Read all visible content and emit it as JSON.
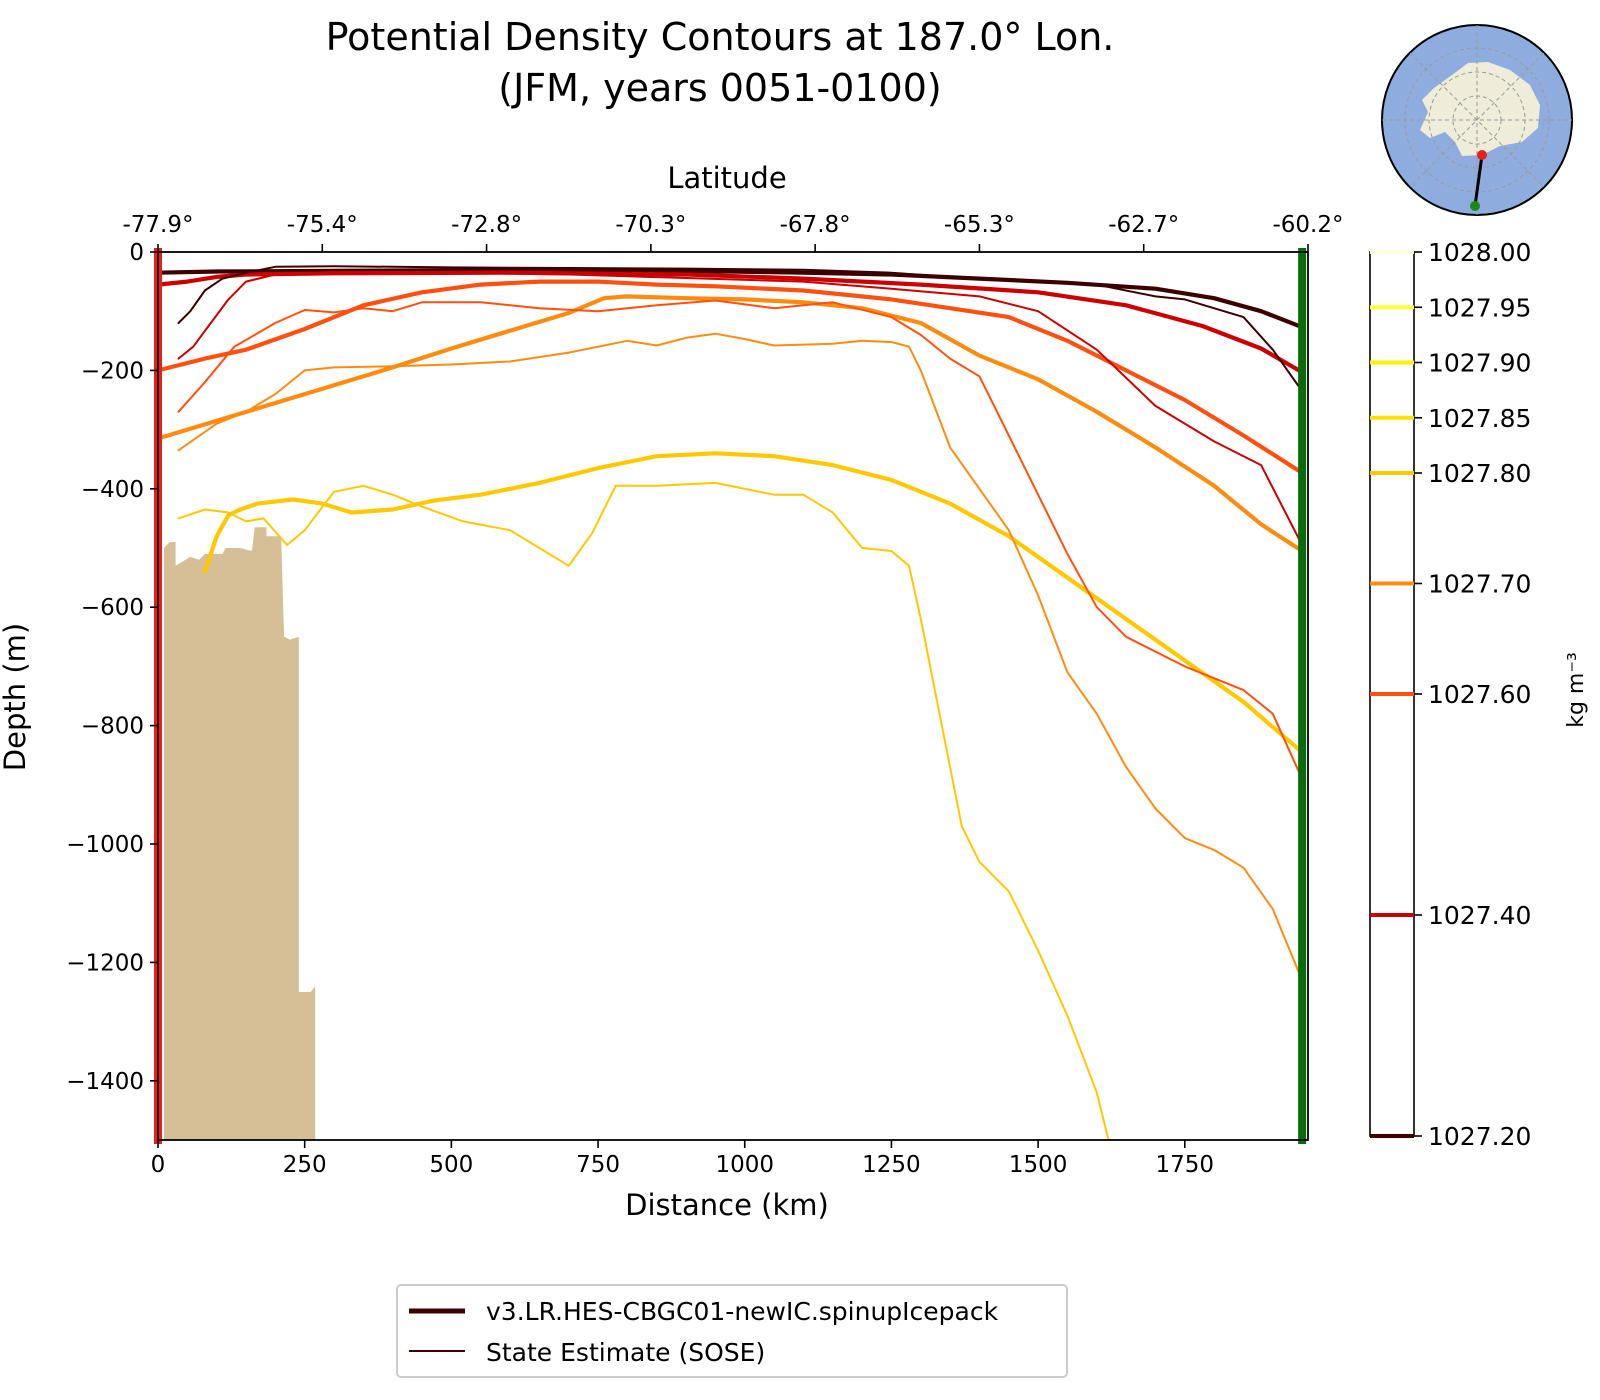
{
  "chart_data": {
    "type": "line",
    "title": "Potential Density Contours at 187.0° Lon.",
    "subtitle": "(JFM, years 0051-0100)",
    "xlabel": "Distance (km)",
    "x2label": "Latitude",
    "ylabel": "Depth (m)",
    "xlim": [
      0,
      1960
    ],
    "ylim": [
      -1500,
      0
    ],
    "x_ticks": [
      0,
      250,
      500,
      750,
      1000,
      1250,
      1500,
      1750
    ],
    "y_ticks": [
      0,
      -200,
      -400,
      -600,
      -800,
      -1000,
      -1200,
      -1400
    ],
    "x_tick_labels": [
      "0",
      "250",
      "500",
      "750",
      "1000",
      "1250",
      "1500",
      "1750"
    ],
    "y_tick_labels": [
      "0",
      "−200",
      "−400",
      "−600",
      "−800",
      "−1000",
      "−1200",
      "−1400"
    ],
    "top_axis": {
      "positions": [
        0,
        280,
        560,
        840,
        1120,
        1400,
        1680,
        1960
      ],
      "labels": [
        "-77.9°",
        "-75.4°",
        "-72.8°",
        "-70.3°",
        "-67.8°",
        "-65.3°",
        "-62.7°",
        "-60.2°"
      ]
    },
    "colorbar": {
      "label": "kg m⁻³",
      "range": [
        1027.2,
        1028.0
      ],
      "levels": [
        {
          "value": 1028.0,
          "label": "1028.00",
          "color": "#fffde0"
        },
        {
          "value": 1027.95,
          "label": "1027.95",
          "color": "#ffff33"
        },
        {
          "value": 1027.9,
          "label": "1027.90",
          "color": "#fff000"
        },
        {
          "value": 1027.85,
          "label": "1027.85",
          "color": "#ffe000"
        },
        {
          "value": 1027.8,
          "label": "1027.80",
          "color": "#ffc800"
        },
        {
          "value": 1027.7,
          "label": "1027.70",
          "color": "#ff8c10"
        },
        {
          "value": 1027.6,
          "label": "1027.60",
          "color": "#ff5010"
        },
        {
          "value": 1027.4,
          "label": "1027.40",
          "color": "#cc0000"
        },
        {
          "value": 1027.2,
          "label": "1027.20",
          "color": "#3d0000"
        }
      ]
    },
    "legend": {
      "placement": "bottom-center",
      "entries": [
        {
          "label": "v3.LR.HES-CBGC01-newIC.spinupIcepack",
          "style": "thick"
        },
        {
          "label": "State Estimate (SOSE)",
          "style": "thin"
        }
      ]
    },
    "bathymetry": {
      "color": "#d6bf96",
      "points": [
        [
          10,
          -500
        ],
        [
          20,
          -490
        ],
        [
          30,
          -490
        ],
        [
          30,
          -530
        ],
        [
          55,
          -515
        ],
        [
          70,
          -520
        ],
        [
          80,
          -510
        ],
        [
          110,
          -510
        ],
        [
          115,
          -500
        ],
        [
          140,
          -500
        ],
        [
          160,
          -505
        ],
        [
          165,
          -465
        ],
        [
          185,
          -465
        ],
        [
          185,
          -480
        ],
        [
          205,
          -480
        ],
        [
          210,
          -485
        ],
        [
          215,
          -650
        ],
        [
          225,
          -655
        ],
        [
          240,
          -650
        ],
        [
          240,
          -1250
        ],
        [
          260,
          -1250
        ],
        [
          268,
          -1240
        ],
        [
          268,
          -1500
        ],
        [
          10,
          -1500
        ]
      ]
    },
    "section_markers": [
      {
        "x": 0,
        "color": "#e8201a"
      },
      {
        "x": 1950,
        "color": "#0a6b0a"
      }
    ],
    "series": [
      {
        "name": "",
        "model": "v3.LR.HES-CBGC01-newIC.spinupIcepack",
        "level": 1027.2,
        "width": "thick",
        "points": [
          [
            0,
            -35
          ],
          [
            100,
            -33
          ],
          [
            300,
            -32
          ],
          [
            600,
            -30
          ],
          [
            900,
            -32
          ],
          [
            1100,
            -35
          ],
          [
            1250,
            -38
          ],
          [
            1400,
            -45
          ],
          [
            1550,
            -52
          ],
          [
            1700,
            -62
          ],
          [
            1800,
            -78
          ],
          [
            1880,
            -100
          ],
          [
            1950,
            -127
          ]
        ]
      },
      {
        "name": "",
        "model": "v3.LR.HES-CBGC01-newIC.spinupIcepack",
        "level": 1027.4,
        "width": "thick",
        "points": [
          [
            0,
            -55
          ],
          [
            50,
            -50
          ],
          [
            100,
            -42
          ],
          [
            150,
            -38
          ],
          [
            300,
            -36
          ],
          [
            600,
            -35
          ],
          [
            900,
            -38
          ],
          [
            1100,
            -45
          ],
          [
            1300,
            -55
          ],
          [
            1500,
            -68
          ],
          [
            1650,
            -90
          ],
          [
            1780,
            -125
          ],
          [
            1880,
            -163
          ],
          [
            1950,
            -203
          ]
        ]
      },
      {
        "name": "",
        "model": "v3.LR.HES-CBGC01-newIC.spinupIcepack",
        "level": 1027.6,
        "width": "thick",
        "points": [
          [
            0,
            -200
          ],
          [
            80,
            -180
          ],
          [
            150,
            -165
          ],
          [
            250,
            -130
          ],
          [
            350,
            -90
          ],
          [
            450,
            -68
          ],
          [
            550,
            -55
          ],
          [
            650,
            -50
          ],
          [
            750,
            -50
          ],
          [
            850,
            -55
          ],
          [
            950,
            -58
          ],
          [
            1100,
            -65
          ],
          [
            1250,
            -80
          ],
          [
            1350,
            -95
          ],
          [
            1450,
            -110
          ],
          [
            1550,
            -150
          ],
          [
            1650,
            -200
          ],
          [
            1750,
            -250
          ],
          [
            1850,
            -310
          ],
          [
            1950,
            -373
          ]
        ]
      },
      {
        "name": "",
        "model": "v3.LR.HES-CBGC01-newIC.spinupIcepack",
        "level": 1027.7,
        "width": "thick",
        "points": [
          [
            0,
            -315
          ],
          [
            100,
            -285
          ],
          [
            200,
            -255
          ],
          [
            300,
            -225
          ],
          [
            400,
            -195
          ],
          [
            500,
            -163
          ],
          [
            600,
            -133
          ],
          [
            700,
            -103
          ],
          [
            760,
            -78
          ],
          [
            800,
            -75
          ],
          [
            900,
            -78
          ],
          [
            1000,
            -80
          ],
          [
            1100,
            -85
          ],
          [
            1200,
            -95
          ],
          [
            1300,
            -120
          ],
          [
            1400,
            -175
          ],
          [
            1500,
            -215
          ],
          [
            1600,
            -270
          ],
          [
            1700,
            -330
          ],
          [
            1800,
            -395
          ],
          [
            1880,
            -460
          ],
          [
            1950,
            -505
          ]
        ]
      },
      {
        "name": "",
        "model": "v3.LR.HES-CBGC01-newIC.spinupIcepack",
        "level": 1027.8,
        "width": "thick",
        "points": [
          [
            80,
            -540
          ],
          [
            90,
            -510
          ],
          [
            100,
            -480
          ],
          [
            120,
            -445
          ],
          [
            140,
            -435
          ],
          [
            170,
            -425
          ],
          [
            230,
            -418
          ],
          [
            280,
            -425
          ],
          [
            330,
            -440
          ],
          [
            400,
            -435
          ],
          [
            470,
            -420
          ],
          [
            550,
            -410
          ],
          [
            650,
            -390
          ],
          [
            750,
            -365
          ],
          [
            850,
            -345
          ],
          [
            950,
            -340
          ],
          [
            1050,
            -345
          ],
          [
            1150,
            -360
          ],
          [
            1250,
            -385
          ],
          [
            1350,
            -425
          ],
          [
            1450,
            -480
          ],
          [
            1550,
            -550
          ],
          [
            1650,
            -620
          ],
          [
            1750,
            -690
          ],
          [
            1850,
            -760
          ],
          [
            1950,
            -845
          ]
        ]
      },
      {
        "name": "",
        "model": "State Estimate (SOSE)",
        "level": 1027.2,
        "width": "thin",
        "points": [
          [
            35,
            -120
          ],
          [
            55,
            -100
          ],
          [
            80,
            -65
          ],
          [
            110,
            -45
          ],
          [
            150,
            -35
          ],
          [
            200,
            -25
          ],
          [
            300,
            -24
          ],
          [
            500,
            -26
          ],
          [
            700,
            -27
          ],
          [
            900,
            -28
          ],
          [
            1100,
            -30
          ],
          [
            1250,
            -35
          ],
          [
            1350,
            -42
          ],
          [
            1450,
            -46
          ],
          [
            1550,
            -52
          ],
          [
            1600,
            -55
          ],
          [
            1700,
            -75
          ],
          [
            1750,
            -80
          ],
          [
            1850,
            -110
          ],
          [
            1900,
            -165
          ],
          [
            1950,
            -235
          ]
        ]
      },
      {
        "name": "",
        "model": "State Estimate (SOSE)",
        "level": 1027.4,
        "width": "thin",
        "points": [
          [
            35,
            -180
          ],
          [
            60,
            -160
          ],
          [
            90,
            -120
          ],
          [
            120,
            -80
          ],
          [
            150,
            -50
          ],
          [
            200,
            -38
          ],
          [
            300,
            -34
          ],
          [
            500,
            -35
          ],
          [
            700,
            -38
          ],
          [
            900,
            -44
          ],
          [
            1100,
            -50
          ],
          [
            1250,
            -62
          ],
          [
            1400,
            -75
          ],
          [
            1500,
            -100
          ],
          [
            1600,
            -165
          ],
          [
            1700,
            -260
          ],
          [
            1800,
            -320
          ],
          [
            1880,
            -360
          ],
          [
            1950,
            -495
          ]
        ]
      },
      {
        "name": "",
        "model": "State Estimate (SOSE)",
        "level": 1027.6,
        "width": "thin",
        "points": [
          [
            35,
            -270
          ],
          [
            80,
            -220
          ],
          [
            130,
            -160
          ],
          [
            200,
            -120
          ],
          [
            250,
            -98
          ],
          [
            300,
            -102
          ],
          [
            350,
            -95
          ],
          [
            400,
            -100
          ],
          [
            450,
            -85
          ],
          [
            550,
            -85
          ],
          [
            650,
            -95
          ],
          [
            750,
            -100
          ],
          [
            850,
            -90
          ],
          [
            950,
            -82
          ],
          [
            1050,
            -95
          ],
          [
            1150,
            -85
          ],
          [
            1250,
            -110
          ],
          [
            1300,
            -140
          ],
          [
            1350,
            -180
          ],
          [
            1400,
            -210
          ],
          [
            1450,
            -310
          ],
          [
            1500,
            -410
          ],
          [
            1550,
            -510
          ],
          [
            1600,
            -600
          ],
          [
            1650,
            -650
          ],
          [
            1750,
            -700
          ],
          [
            1850,
            -740
          ],
          [
            1900,
            -780
          ],
          [
            1950,
            -890
          ]
        ]
      },
      {
        "name": "",
        "model": "State Estimate (SOSE)",
        "level": 1027.7,
        "width": "thin",
        "points": [
          [
            35,
            -335
          ],
          [
            100,
            -290
          ],
          [
            150,
            -270
          ],
          [
            200,
            -240
          ],
          [
            250,
            -200
          ],
          [
            300,
            -195
          ],
          [
            400,
            -193
          ],
          [
            500,
            -190
          ],
          [
            600,
            -185
          ],
          [
            700,
            -170
          ],
          [
            800,
            -150
          ],
          [
            850,
            -158
          ],
          [
            900,
            -145
          ],
          [
            950,
            -138
          ],
          [
            1000,
            -147
          ],
          [
            1050,
            -158
          ],
          [
            1150,
            -155
          ],
          [
            1200,
            -150
          ],
          [
            1250,
            -152
          ],
          [
            1280,
            -160
          ],
          [
            1300,
            -200
          ],
          [
            1350,
            -330
          ],
          [
            1400,
            -400
          ],
          [
            1450,
            -470
          ],
          [
            1500,
            -580
          ],
          [
            1550,
            -710
          ],
          [
            1600,
            -780
          ],
          [
            1650,
            -870
          ],
          [
            1700,
            -940
          ],
          [
            1750,
            -990
          ],
          [
            1800,
            -1010
          ],
          [
            1850,
            -1040
          ],
          [
            1900,
            -1110
          ],
          [
            1950,
            -1230
          ]
        ]
      },
      {
        "name": "",
        "model": "State Estimate (SOSE)",
        "level": 1027.8,
        "width": "thin",
        "points": [
          [
            35,
            -450
          ],
          [
            80,
            -435
          ],
          [
            120,
            -440
          ],
          [
            150,
            -455
          ],
          [
            180,
            -450
          ],
          [
            220,
            -495
          ],
          [
            250,
            -470
          ],
          [
            300,
            -405
          ],
          [
            350,
            -395
          ],
          [
            400,
            -410
          ],
          [
            450,
            -430
          ],
          [
            520,
            -455
          ],
          [
            600,
            -470
          ],
          [
            650,
            -500
          ],
          [
            700,
            -530
          ],
          [
            740,
            -475
          ],
          [
            780,
            -395
          ],
          [
            850,
            -395
          ],
          [
            950,
            -390
          ],
          [
            1050,
            -410
          ],
          [
            1100,
            -410
          ],
          [
            1150,
            -440
          ],
          [
            1200,
            -500
          ],
          [
            1250,
            -505
          ],
          [
            1280,
            -530
          ],
          [
            1300,
            -620
          ],
          [
            1340,
            -820
          ],
          [
            1370,
            -970
          ],
          [
            1400,
            -1030
          ],
          [
            1450,
            -1080
          ],
          [
            1500,
            -1180
          ],
          [
            1550,
            -1290
          ],
          [
            1600,
            -1420
          ],
          [
            1620,
            -1500
          ]
        ]
      }
    ]
  }
}
